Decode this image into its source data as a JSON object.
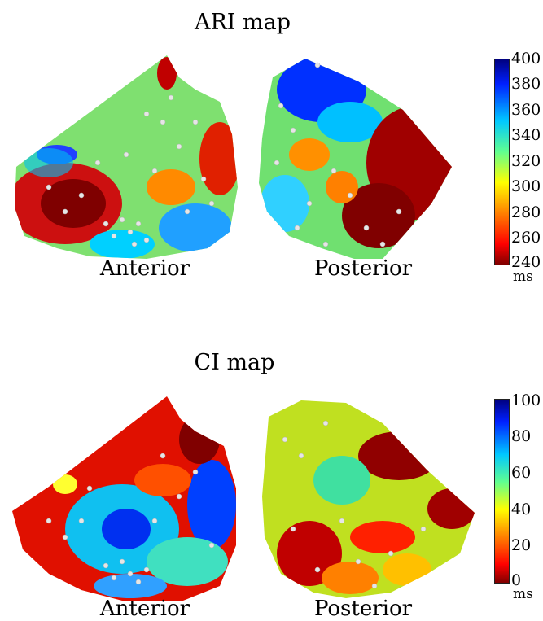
{
  "panels": {
    "ari": {
      "title": "ARI map",
      "anterior_label": "Anterior",
      "posterior_label": "Posterior",
      "colorbar": {
        "ticks": [
          "400",
          "380",
          "360",
          "340",
          "320",
          "300",
          "280",
          "260",
          "240"
        ],
        "unit": "ms"
      }
    },
    "ci": {
      "title": "CI map",
      "anterior_label": "Anterior",
      "posterior_label": "Posterior",
      "colorbar": {
        "ticks": [
          "100",
          "80",
          "60",
          "40",
          "20",
          "0"
        ],
        "unit": "ms"
      }
    }
  },
  "colors": {
    "jet_top": "#00007f",
    "jet_blue": "#0060ff",
    "jet_cyan": "#00e5ff",
    "jet_green": "#70ff70",
    "jet_yellow": "#ffe600",
    "jet_orange": "#ff6a00",
    "jet_red": "#e00000",
    "jet_bottom": "#7f0000",
    "electrode": "#e6e6e6"
  }
}
